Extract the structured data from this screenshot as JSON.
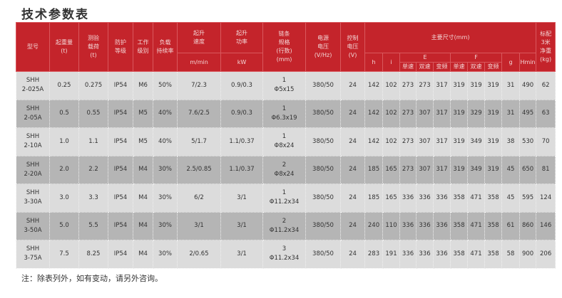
{
  "title": "技术参数表",
  "headers": {
    "model": "型号",
    "capacity": "起重量\n(t)",
    "test_load": "测验\n载荷\n(t)",
    "protection": "防护\n等级",
    "duty_class": "工作\n级别",
    "duty_cycle": "负载\n持续率",
    "lift_speed": "起升\n速度",
    "lift_speed_unit": "m/min",
    "lift_power": "起升\n功率",
    "lift_power_unit": "kW",
    "chain": "链条\n规格\n(行数)\n(mm)",
    "supply_voltage": "电源\n电压\n(V/Hz)",
    "control_voltage": "控制\n电压\n(V)",
    "dimensions": "主要尺寸(mm)",
    "h": "h",
    "i": "i",
    "E": "E",
    "F": "F",
    "single": "单速",
    "dual": "双速",
    "vfd": "变频",
    "g": "g",
    "hmin": "Hmin",
    "weight": "标配\n3米\n净重\n(kg)"
  },
  "rows": [
    [
      "SHH\n2-025A",
      "0.25",
      "0.275",
      "IP54",
      "M6",
      "50%",
      "7/2.3",
      "0.9/0.3",
      "1\nΦ5x15",
      "380/50",
      "24",
      "142",
      "102",
      "273",
      "273",
      "317",
      "319",
      "319",
      "319",
      "31",
      "490",
      "62"
    ],
    [
      "SHH\n2-05A",
      "0.5",
      "0.55",
      "IP54",
      "M5",
      "40%",
      "7.6/2.5",
      "0.9/0.3",
      "1\nΦ6.3x19",
      "380/50",
      "24",
      "142",
      "102",
      "273",
      "307",
      "317",
      "319",
      "329",
      "319",
      "31",
      "495",
      "63"
    ],
    [
      "SHH\n2-10A",
      "1.0",
      "1.1",
      "IP54",
      "M5",
      "40%",
      "5/1.7",
      "1.1/0.37",
      "1\nΦ8x24",
      "380/50",
      "24",
      "142",
      "102",
      "273",
      "307",
      "317",
      "319",
      "349",
      "319",
      "38",
      "530",
      "70"
    ],
    [
      "SHH\n2-20A",
      "2.0",
      "2.2",
      "IP54",
      "M4",
      "30%",
      "2.5/0.85",
      "1.1/0.37",
      "2\nΦ8x24",
      "380/50",
      "24",
      "185",
      "165",
      "273",
      "307",
      "317",
      "319",
      "349",
      "319",
      "45",
      "650",
      "81"
    ],
    [
      "SHH\n3-30A",
      "3.0",
      "3.3",
      "IP54",
      "M4",
      "30%",
      "6/2",
      "3/1",
      "1\nΦ11.2x34",
      "380/50",
      "24",
      "185",
      "165",
      "336",
      "336",
      "336",
      "358",
      "471",
      "358",
      "45",
      "595",
      "124"
    ],
    [
      "SHH\n3-50A",
      "5.0",
      "5.5",
      "IP54",
      "M4",
      "30%",
      "3/1",
      "3/1",
      "2\nΦ11.2x34",
      "380/50",
      "24",
      "240",
      "110",
      "336",
      "336",
      "336",
      "358",
      "471",
      "358",
      "61",
      "860",
      "146"
    ],
    [
      "SHH\n3-75A",
      "7.5",
      "8.25",
      "IP54",
      "M4",
      "30%",
      "2/0.65",
      "3/1",
      "3\nΦ11.2x34",
      "380/50",
      "24",
      "283",
      "191",
      "336",
      "336",
      "336",
      "358",
      "471",
      "358",
      "58",
      "900",
      "206"
    ]
  ],
  "note": "注：除表列外，如有变动，请另外咨询。",
  "colors": {
    "header_bg": "#c4242b",
    "row_light": "#dcdcdc",
    "row_dark": "#b5b5b5"
  }
}
